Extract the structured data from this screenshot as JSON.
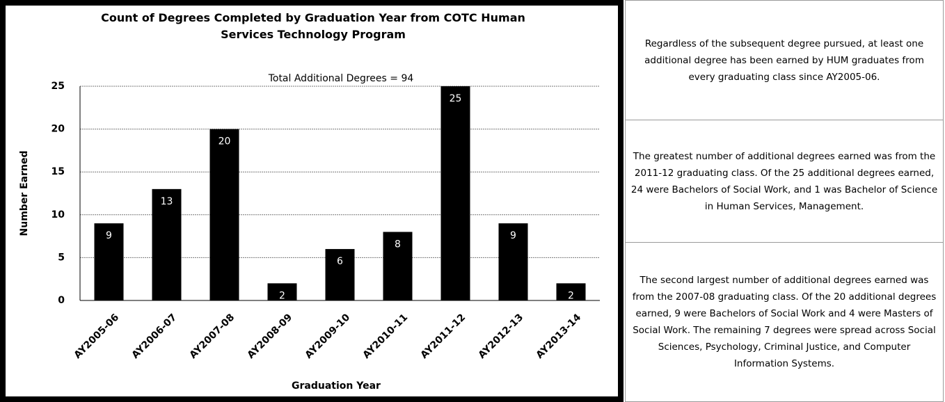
{
  "chart_data": {
    "type": "bar",
    "title": "Count of Degrees Completed by Graduation Year from COTC Human Services Technology Program",
    "subtitle": "Total Additional Degrees = 94",
    "x_label": "Graduation Year",
    "y_label": "Number Earned",
    "categories": [
      "AY2005-06",
      "AY2006-07",
      "AY2007-08",
      "AY2008-09",
      "AY2009-10",
      "AY2010-11",
      "AY2011-12",
      "AY2012-13",
      "AY2013-14"
    ],
    "values": [
      9,
      13,
      20,
      2,
      6,
      8,
      25,
      9,
      2
    ],
    "color": "#000000",
    "ylim": [
      0,
      25
    ],
    "yticks": [
      0,
      5,
      10,
      15,
      20,
      25
    ],
    "grid": true
  },
  "notes": [
    "Regardless of the subsequent degree pursued, at least one additional degree has been earned by HUM graduates from every graduating class since AY2005-06.",
    "The greatest number of additional degrees earned was from the 2011-12 graduating class. Of the 25 additional degrees earned, 24 were Bachelors of Social Work, and 1 was Bachelor of Science in Human Services, Management.",
    "The second largest number of additional degrees earned was from the 2007-08 graduating class. Of the 20 additional degrees earned, 9 were Bachelors of Social Work and 4 were Masters of Social Work. The remaining 7 degrees were spread across Social Sciences, Psychology, Criminal Justice, and Computer Information Systems."
  ]
}
